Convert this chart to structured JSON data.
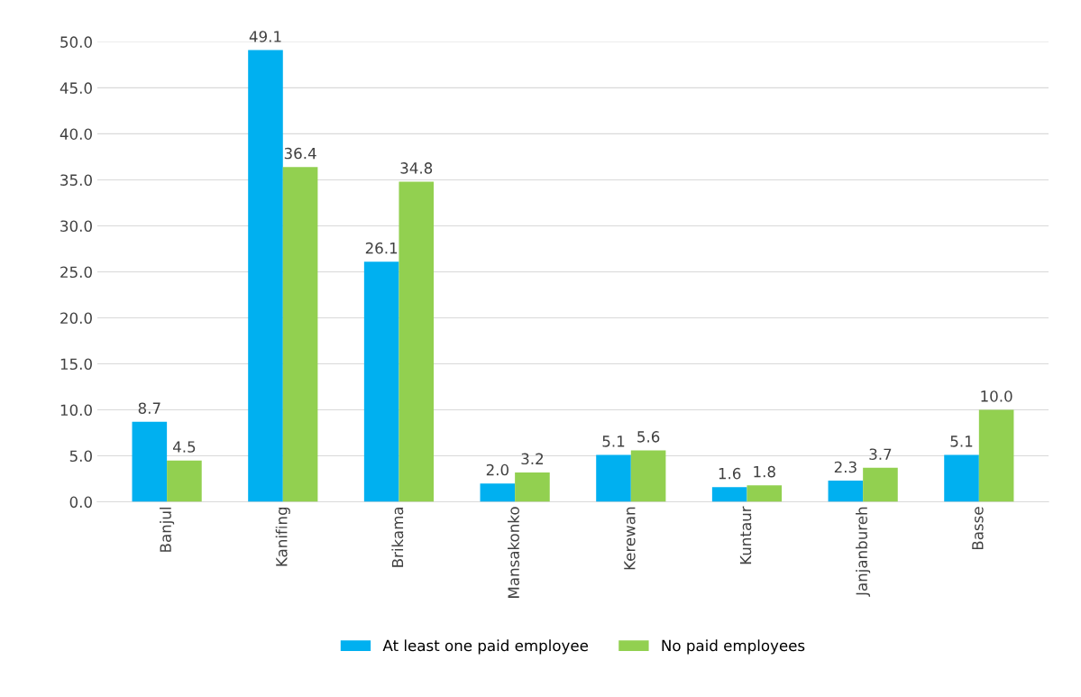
{
  "chart_data": {
    "type": "bar",
    "categories": [
      "Banjul",
      "Kanifing",
      "Brikama",
      "Mansakonko",
      "Kerewan",
      "Kuntaur",
      "Janjanbureh",
      "Basse"
    ],
    "series": [
      {
        "name": "At least one paid employee",
        "color": "#00b0f0",
        "values": [
          8.7,
          49.1,
          26.1,
          2.0,
          5.1,
          1.6,
          2.3,
          5.1
        ],
        "value_labels": [
          "8.7",
          "49.1",
          "26.1",
          "2.0",
          "5.1",
          "1.6",
          "2.3",
          "5.1"
        ]
      },
      {
        "name": "No paid employees",
        "color": "#92d050",
        "values": [
          4.5,
          36.4,
          34.8,
          3.2,
          5.6,
          1.8,
          3.7,
          10.0
        ],
        "value_labels": [
          "4.5",
          "36.4",
          "34.8",
          "3.2",
          "5.6",
          "1.8",
          "3.7",
          "10.0"
        ]
      }
    ],
    "ylim": [
      0,
      50
    ],
    "yticks": [
      {
        "value": 0,
        "label": "0.0"
      },
      {
        "value": 5,
        "label": "5.0"
      },
      {
        "value": 10,
        "label": "10.0"
      },
      {
        "value": 15,
        "label": "15.0"
      },
      {
        "value": 20,
        "label": "20.0"
      },
      {
        "value": 25,
        "label": "25.0"
      },
      {
        "value": 30,
        "label": "30.0"
      },
      {
        "value": 35,
        "label": "35.0"
      },
      {
        "value": 40,
        "label": "40.0"
      },
      {
        "value": 45,
        "label": "45.0"
      },
      {
        "value": 50,
        "label": "50.0"
      }
    ],
    "grid": "y",
    "legend": "bottom"
  }
}
